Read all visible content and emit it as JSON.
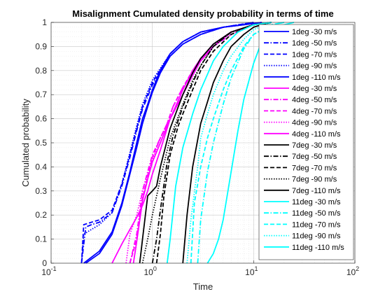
{
  "chart_data": {
    "type": "line",
    "title": "Misalignment Cumulated density probability in terms of time",
    "xlabel": "Time",
    "ylabel": "Cumulated probability",
    "xscale": "log",
    "xlim": [
      0.1,
      100
    ],
    "ylim": [
      0,
      1
    ],
    "x_ticks": [
      {
        "base": "10",
        "exp": "-1"
      },
      {
        "base": "10",
        "exp": "0"
      },
      {
        "base": "10",
        "exp": "1"
      },
      {
        "base": "10",
        "exp": "2"
      }
    ],
    "y_ticks": [
      "0",
      "0.1",
      "0.2",
      "0.3",
      "0.4",
      "0.5",
      "0.6",
      "0.7",
      "0.8",
      "0.9",
      "1"
    ],
    "grid": true,
    "legend_position": "top-right",
    "series": [
      {
        "name": "1deg -30 m/s",
        "color": "#0000ff",
        "style": "solid",
        "x": [
          0.21,
          0.3,
          0.4,
          0.5,
          0.6,
          0.7,
          0.8,
          0.9,
          1.0,
          1.2,
          1.5,
          2.0,
          3.0,
          5.0,
          8.0,
          12.0
        ],
        "y": [
          0.0,
          0.05,
          0.13,
          0.25,
          0.38,
          0.5,
          0.6,
          0.66,
          0.72,
          0.8,
          0.87,
          0.92,
          0.96,
          0.98,
          0.99,
          1.0
        ]
      },
      {
        "name": "1deg -50 m/s",
        "color": "#0000ff",
        "style": "dashdot",
        "x": [
          0.2,
          0.22,
          0.25,
          0.3,
          0.4,
          0.5,
          0.6,
          0.7,
          0.8,
          1.0,
          1.5,
          2.0,
          3.0,
          5.0,
          10.0
        ],
        "y": [
          0.0,
          0.15,
          0.16,
          0.17,
          0.21,
          0.32,
          0.44,
          0.55,
          0.64,
          0.74,
          0.86,
          0.91,
          0.95,
          0.98,
          1.0
        ]
      },
      {
        "name": "1deg -70 m/s",
        "color": "#0000ff",
        "style": "dashed",
        "x": [
          0.2,
          0.21,
          0.25,
          0.3,
          0.4,
          0.5,
          0.6,
          0.7,
          0.8,
          1.0,
          1.5,
          2.0,
          3.0,
          5.0,
          10.0
        ],
        "y": [
          0.0,
          0.16,
          0.17,
          0.18,
          0.22,
          0.33,
          0.45,
          0.56,
          0.65,
          0.75,
          0.87,
          0.92,
          0.96,
          0.98,
          1.0
        ]
      },
      {
        "name": "1deg -90 m/s",
        "color": "#0000ff",
        "style": "dotted",
        "x": [
          0.2,
          0.21,
          0.25,
          0.3,
          0.4,
          0.5,
          0.6,
          0.7,
          0.8,
          1.0,
          1.5,
          2.0,
          3.0,
          5.0,
          10.0
        ],
        "y": [
          0.0,
          0.12,
          0.14,
          0.16,
          0.21,
          0.33,
          0.46,
          0.57,
          0.66,
          0.76,
          0.87,
          0.92,
          0.96,
          0.98,
          1.0
        ]
      },
      {
        "name": "1deg -110 m/s",
        "color": "#0000ff",
        "style": "solid",
        "x": [
          0.22,
          0.3,
          0.4,
          0.5,
          0.6,
          0.7,
          0.8,
          0.9,
          1.0,
          1.2,
          1.5,
          2.0,
          3.0,
          5.0,
          8.0,
          12.0
        ],
        "y": [
          0.0,
          0.04,
          0.12,
          0.24,
          0.37,
          0.48,
          0.58,
          0.65,
          0.71,
          0.79,
          0.86,
          0.91,
          0.95,
          0.98,
          0.99,
          1.0
        ]
      },
      {
        "name": "4deg -30 m/s",
        "color": "#ff00ff",
        "style": "solid",
        "x": [
          0.4,
          0.5,
          0.6,
          0.7,
          0.8,
          0.9,
          1.0,
          1.2,
          1.5,
          2.0,
          2.5,
          3.0,
          4.0,
          6.0,
          10.0,
          15.0
        ],
        "y": [
          0.0,
          0.08,
          0.14,
          0.19,
          0.24,
          0.3,
          0.37,
          0.47,
          0.6,
          0.72,
          0.8,
          0.85,
          0.91,
          0.96,
          0.99,
          1.0
        ]
      },
      {
        "name": "4deg -50 m/s",
        "color": "#ff00ff",
        "style": "dashdot",
        "x": [
          0.6,
          0.7,
          0.8,
          0.9,
          1.0,
          1.2,
          1.4,
          1.6,
          2.0,
          2.5,
          3.0,
          4.0,
          6.0,
          10.0,
          15.0
        ],
        "y": [
          0.0,
          0.12,
          0.3,
          0.38,
          0.45,
          0.52,
          0.58,
          0.65,
          0.73,
          0.79,
          0.84,
          0.9,
          0.95,
          0.99,
          1.0
        ]
      },
      {
        "name": "4deg -70 m/s",
        "color": "#ff00ff",
        "style": "dashed",
        "x": [
          0.6,
          0.7,
          0.8,
          0.9,
          1.0,
          1.2,
          1.4,
          1.6,
          2.0,
          2.5,
          3.0,
          4.0,
          6.0,
          10.0,
          15.0
        ],
        "y": [
          0.0,
          0.1,
          0.27,
          0.36,
          0.44,
          0.52,
          0.58,
          0.65,
          0.73,
          0.8,
          0.85,
          0.9,
          0.96,
          0.99,
          1.0
        ]
      },
      {
        "name": "4deg -90 m/s",
        "color": "#ff00ff",
        "style": "dotted",
        "x": [
          0.55,
          0.6,
          0.7,
          0.8,
          0.9,
          1.0,
          1.2,
          1.5,
          2.0,
          2.5,
          3.0,
          4.0,
          6.0,
          10.0,
          15.0
        ],
        "y": [
          0.0,
          0.12,
          0.2,
          0.3,
          0.37,
          0.43,
          0.52,
          0.6,
          0.7,
          0.78,
          0.84,
          0.9,
          0.96,
          0.99,
          1.0
        ]
      },
      {
        "name": "4deg -110 m/s",
        "color": "#ff00ff",
        "style": "solid",
        "x": [
          0.65,
          0.7,
          0.8,
          0.9,
          1.0,
          1.2,
          1.5,
          2.0,
          2.5,
          3.0,
          4.0,
          6.0,
          10.0,
          15.0
        ],
        "y": [
          0.0,
          0.09,
          0.26,
          0.35,
          0.42,
          0.5,
          0.6,
          0.7,
          0.78,
          0.84,
          0.9,
          0.96,
          0.99,
          1.0
        ]
      },
      {
        "name": "7deg -30 m/s",
        "color": "#000000",
        "style": "solid",
        "x": [
          0.75,
          0.8,
          0.9,
          1.0,
          1.1,
          1.2,
          1.5,
          2.0,
          2.5,
          3.0,
          4.0,
          6.0,
          10.0,
          15.0
        ],
        "y": [
          0.0,
          0.1,
          0.28,
          0.3,
          0.32,
          0.4,
          0.56,
          0.7,
          0.79,
          0.85,
          0.91,
          0.96,
          0.99,
          1.0
        ]
      },
      {
        "name": "7deg -50 m/s",
        "color": "#000000",
        "style": "dashdot",
        "x": [
          1.0,
          1.1,
          1.2,
          1.4,
          1.6,
          2.0,
          2.5,
          3.0,
          4.0,
          6.0,
          10.0,
          15.0
        ],
        "y": [
          0.0,
          0.1,
          0.22,
          0.42,
          0.53,
          0.65,
          0.75,
          0.82,
          0.9,
          0.96,
          0.99,
          1.0
        ]
      },
      {
        "name": "7deg -70 m/s",
        "color": "#000000",
        "style": "dashed",
        "x": [
          1.1,
          1.2,
          1.3,
          1.5,
          1.8,
          2.0,
          2.5,
          3.0,
          4.0,
          6.0,
          10.0,
          15.0
        ],
        "y": [
          0.0,
          0.12,
          0.28,
          0.45,
          0.57,
          0.62,
          0.72,
          0.8,
          0.88,
          0.95,
          0.99,
          1.0
        ]
      },
      {
        "name": "7deg -90 m/s",
        "color": "#000000",
        "style": "dotted",
        "x": [
          0.8,
          0.9,
          1.0,
          1.2,
          1.5,
          2.0,
          2.5,
          3.0,
          4.0,
          6.0,
          10.0,
          15.0
        ],
        "y": [
          0.0,
          0.1,
          0.2,
          0.35,
          0.52,
          0.66,
          0.76,
          0.82,
          0.9,
          0.96,
          0.99,
          1.0
        ]
      },
      {
        "name": "7deg -110 m/s",
        "color": "#000000",
        "style": "solid",
        "x": [
          2.0,
          2.2,
          2.5,
          3.0,
          3.5,
          4.0,
          5.0,
          6.0,
          8.0,
          10.0,
          12.0,
          15.0
        ],
        "y": [
          0.0,
          0.2,
          0.4,
          0.58,
          0.67,
          0.75,
          0.84,
          0.9,
          0.95,
          0.98,
          0.99,
          1.0
        ]
      },
      {
        "name": "11deg -30 m/s",
        "color": "#00ffff",
        "style": "solid",
        "x": [
          1.4,
          1.5,
          1.7,
          2.0,
          2.5,
          3.0,
          4.0,
          5.0,
          7.0,
          10.0,
          15.0
        ],
        "y": [
          0.0,
          0.1,
          0.32,
          0.48,
          0.62,
          0.72,
          0.84,
          0.9,
          0.96,
          0.99,
          1.0
        ]
      },
      {
        "name": "11deg -50 m/s",
        "color": "#00ffff",
        "style": "dashdot",
        "x": [
          2.8,
          3.0,
          3.5,
          4.0,
          5.0,
          6.0,
          8.0,
          10.0,
          15.0,
          20.0
        ],
        "y": [
          0.0,
          0.18,
          0.38,
          0.5,
          0.66,
          0.77,
          0.89,
          0.95,
          0.99,
          1.0
        ]
      },
      {
        "name": "11deg -70 m/s",
        "color": "#00ffff",
        "style": "dashed",
        "x": [
          2.4,
          2.6,
          3.0,
          3.5,
          4.0,
          5.0,
          6.0,
          8.0,
          10.0,
          15.0,
          20.0
        ],
        "y": [
          0.0,
          0.25,
          0.4,
          0.52,
          0.6,
          0.72,
          0.8,
          0.9,
          0.95,
          0.99,
          1.0
        ]
      },
      {
        "name": "11deg -90 m/s",
        "color": "#00ffff",
        "style": "dotted",
        "x": [
          2.2,
          2.4,
          2.8,
          3.0,
          3.5,
          4.0,
          5.0,
          6.0,
          8.0,
          10.0,
          15.0
        ],
        "y": [
          0.0,
          0.18,
          0.4,
          0.52,
          0.62,
          0.7,
          0.8,
          0.86,
          0.93,
          0.97,
          1.0
        ]
      },
      {
        "name": "11deg -110 m/s",
        "color": "#00ffff",
        "style": "solid",
        "x": [
          3.5,
          4.0,
          4.5,
          5.0,
          6.0,
          7.0,
          8.0,
          10.0,
          12.0,
          15.0,
          20.0,
          25.0
        ],
        "y": [
          0.0,
          0.04,
          0.1,
          0.18,
          0.38,
          0.55,
          0.68,
          0.83,
          0.92,
          0.97,
          0.99,
          1.0
        ]
      }
    ]
  }
}
